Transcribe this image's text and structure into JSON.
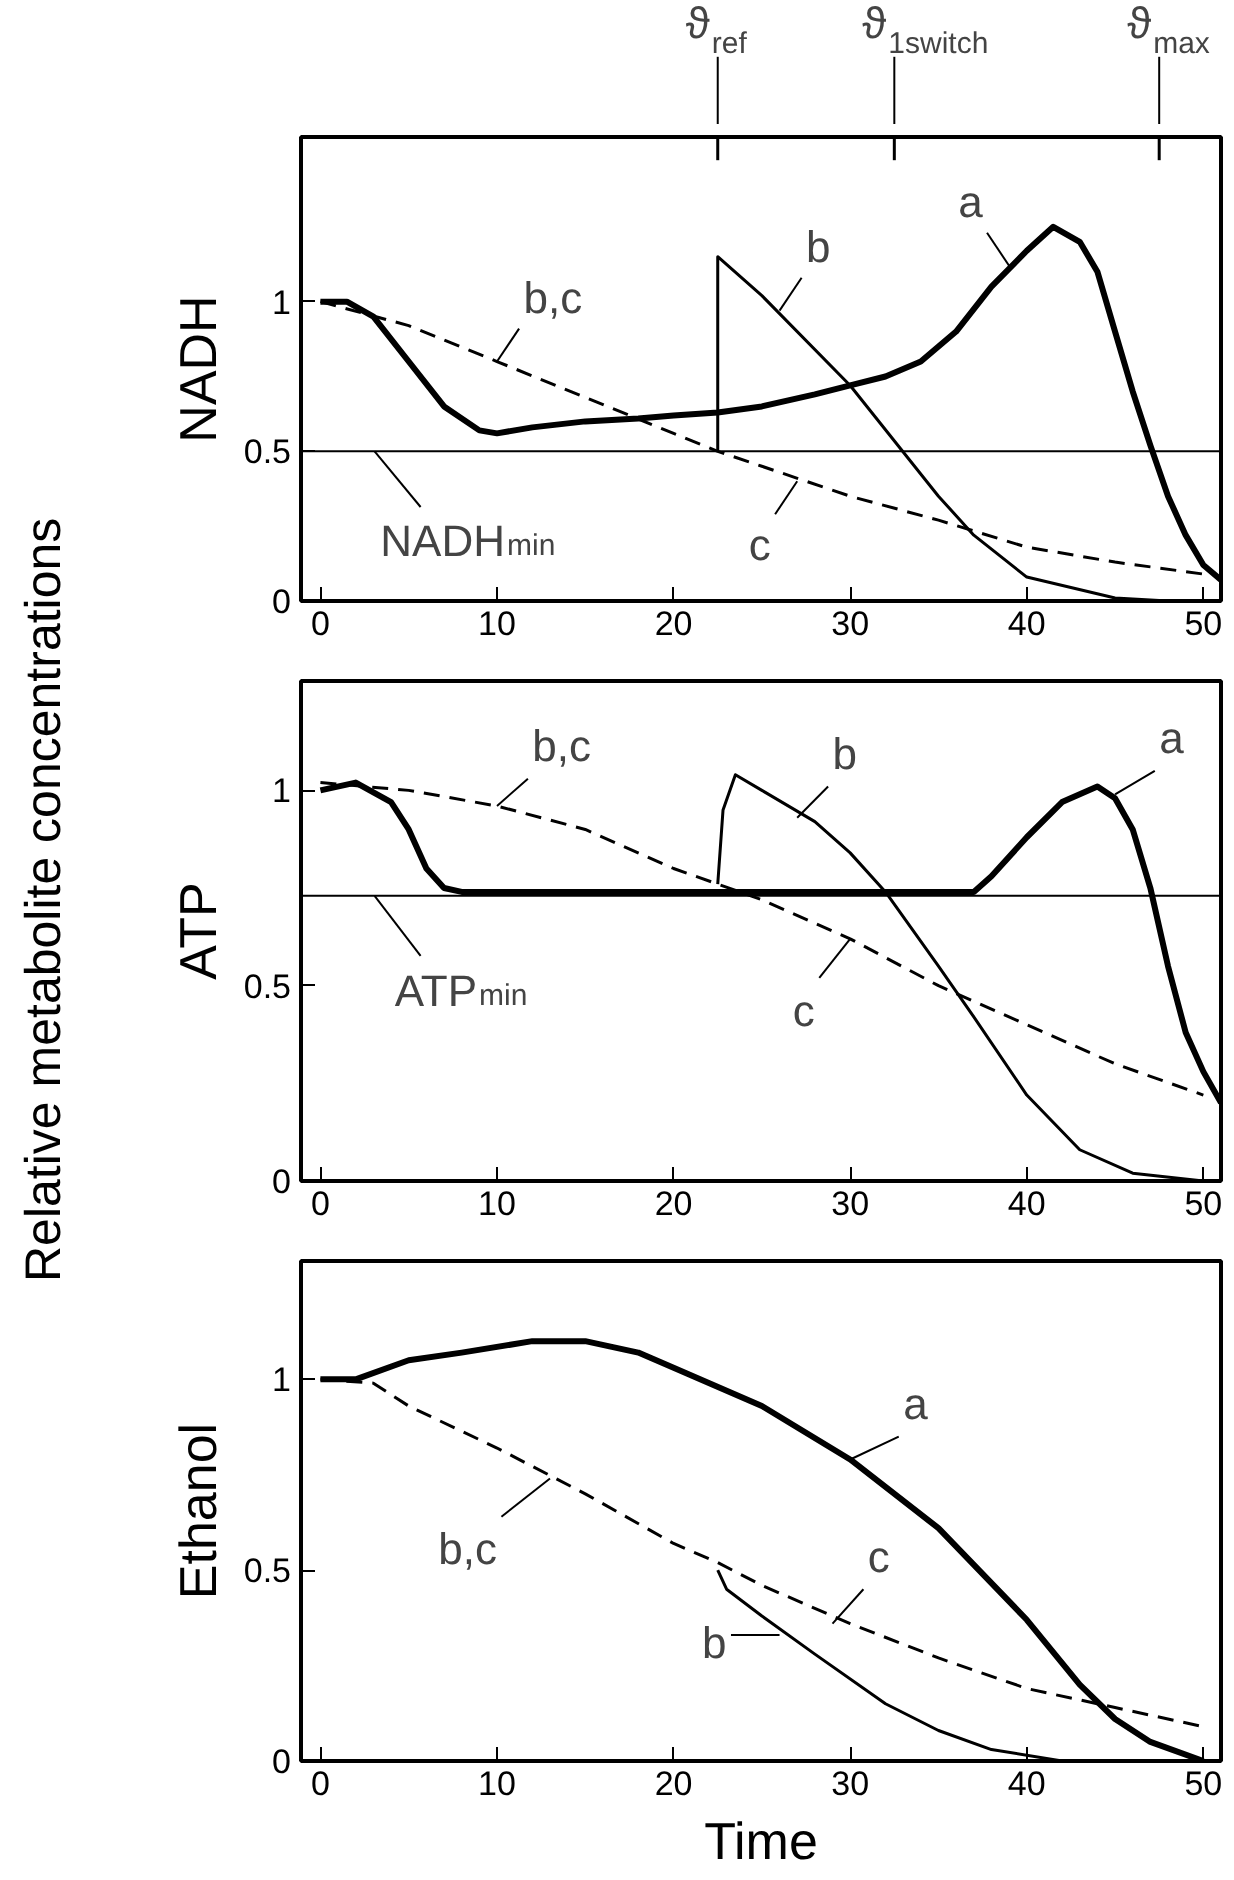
{
  "chart_data": [
    {
      "type": "line",
      "ylabel": "NADH",
      "xlim": [
        -1.1,
        51
      ],
      "xticks": [
        0,
        10,
        20,
        30,
        40,
        50
      ],
      "ylim": [
        0,
        1.55
      ],
      "yticks": [
        0,
        0.5,
        1
      ],
      "grid": false,
      "series": [
        {
          "color": "#000000",
          "line_style": "solid",
          "x": [
            0,
            1.5,
            3,
            5,
            7,
            9,
            10,
            12,
            15,
            18,
            20,
            22.5,
            25,
            28,
            30,
            32,
            34,
            36,
            38,
            40,
            41.5,
            43,
            44,
            45,
            46,
            47,
            48,
            49,
            50,
            51
          ],
          "values": [
            1.0,
            1.0,
            0.95,
            0.8,
            0.65,
            0.57,
            0.56,
            0.58,
            0.6,
            0.61,
            0.62,
            0.63,
            0.65,
            0.69,
            0.72,
            0.75,
            0.8,
            0.9,
            1.05,
            1.17,
            1.25,
            1.2,
            1.1,
            0.9,
            0.7,
            0.52,
            0.35,
            0.22,
            0.12,
            0.07
          ]
        },
        {
          "color": "#000000",
          "line_style": "solid",
          "x": [
            22.5,
            22.5,
            25,
            30,
            35,
            37,
            40,
            45,
            48
          ],
          "values": [
            0.5,
            1.15,
            1.02,
            0.72,
            0.35,
            0.22,
            0.08,
            0.01,
            0
          ]
        },
        {
          "color": "#000000",
          "line_style": "dashed",
          "x": [
            0,
            5,
            10,
            15,
            20,
            22.5,
            25,
            30,
            35,
            40,
            45,
            50
          ],
          "values": [
            1.0,
            0.92,
            0.8,
            0.68,
            0.56,
            0.5,
            0.45,
            0.35,
            0.27,
            0.18,
            0.13,
            0.09
          ]
        }
      ],
      "ref_lines": [
        {
          "axis": "y",
          "value": 0.5,
          "label": "NADH$_{min}$",
          "color": "#000000"
        },
        {
          "axis": "x",
          "value": 22.5,
          "label": "ϑ$_{ref}$",
          "color": "#000000"
        },
        {
          "axis": "x",
          "value": 32.5,
          "label": "ϑ$_{1switch}$",
          "color": "#000000"
        },
        {
          "axis": "x",
          "value": 47.5,
          "label": "ϑ$_{max}$",
          "color": "#000000"
        }
      ],
      "annotations": [
        {
          "text": "a",
          "x": 39,
          "y": 1.12
        },
        {
          "text": "b",
          "x": 26,
          "y": 0.97
        },
        {
          "text": "b,c",
          "x": 10,
          "y": 0.8
        },
        {
          "text": "c",
          "x": 27,
          "y": 0.4
        }
      ]
    },
    {
      "type": "line",
      "ylabel": "ATP",
      "xlim": [
        -1.1,
        51
      ],
      "xticks": [
        0,
        10,
        20,
        30,
        40,
        50
      ],
      "ylim": [
        0,
        1.28
      ],
      "yticks": [
        0,
        0.5,
        1
      ],
      "grid": false,
      "series": [
        {
          "color": "#000000",
          "line_style": "solid",
          "x": [
            0,
            2,
            4,
            5,
            6,
            7,
            8,
            37,
            38,
            40,
            42,
            44,
            45,
            46,
            47,
            48,
            49,
            50,
            51
          ],
          "values": [
            1.0,
            1.02,
            0.97,
            0.9,
            0.8,
            0.75,
            0.74,
            0.74,
            0.78,
            0.88,
            0.97,
            1.01,
            0.98,
            0.9,
            0.75,
            0.55,
            0.38,
            0.28,
            0.2
          ]
        },
        {
          "color": "#000000",
          "line_style": "solid",
          "x": [
            22.5,
            22.8,
            23.5,
            25,
            28,
            30,
            32,
            35,
            37,
            40,
            43,
            46,
            50
          ],
          "values": [
            0.76,
            0.95,
            1.04,
            1.0,
            0.92,
            0.84,
            0.74,
            0.55,
            0.42,
            0.22,
            0.08,
            0.02,
            0
          ]
        },
        {
          "color": "#000000",
          "line_style": "dashed",
          "x": [
            0,
            5,
            10,
            15,
            20,
            22.5,
            25,
            30,
            35,
            40,
            45,
            50
          ],
          "values": [
            1.02,
            1.0,
            0.96,
            0.9,
            0.8,
            0.76,
            0.72,
            0.62,
            0.5,
            0.4,
            0.3,
            0.22
          ]
        }
      ],
      "ref_lines": [
        {
          "axis": "y",
          "value": 0.73,
          "label": "ATP$_{min}$",
          "color": "#000000"
        }
      ],
      "annotations": [
        {
          "text": "b,c",
          "x": 10,
          "y": 0.96
        },
        {
          "text": "b",
          "x": 27,
          "y": 0.93
        },
        {
          "text": "a",
          "x": 45,
          "y": 0.99
        },
        {
          "text": "c",
          "x": 30,
          "y": 0.62
        },
        "Relative metabolite concentrations"
      ]
    },
    {
      "type": "line",
      "ylabel": "Ethanol",
      "xlabel": "Time",
      "xlim": [
        -1.1,
        51
      ],
      "xticks": [
        0,
        10,
        20,
        30,
        40,
        50
      ],
      "ylim": [
        0,
        1.31
      ],
      "yticks": [
        0,
        0.5,
        1
      ],
      "grid": false,
      "series": [
        {
          "color": "#000000",
          "line_style": "solid",
          "x": [
            0,
            2,
            5,
            8,
            12,
            15,
            18,
            20,
            25,
            30,
            35,
            40,
            43,
            45,
            47,
            50
          ],
          "values": [
            1.0,
            1.0,
            1.05,
            1.07,
            1.1,
            1.1,
            1.07,
            1.03,
            0.93,
            0.79,
            0.61,
            0.37,
            0.2,
            0.11,
            0.05,
            0.0
          ]
        },
        {
          "color": "#000000",
          "line_style": "solid",
          "x": [
            22.5,
            23,
            25,
            28,
            32,
            35,
            38,
            42,
            50
          ],
          "values": [
            0.5,
            0.45,
            0.38,
            0.28,
            0.15,
            0.08,
            0.03,
            0.0,
            0
          ]
        },
        {
          "color": "#000000",
          "line_style": "dashed",
          "x": [
            0,
            3,
            5,
            10,
            15,
            20,
            22.5,
            25,
            30,
            35,
            40,
            45,
            50
          ],
          "values": [
            1.0,
            0.99,
            0.93,
            0.82,
            0.7,
            0.57,
            0.52,
            0.46,
            0.36,
            0.27,
            0.19,
            0.14,
            0.09
          ]
        }
      ],
      "annotations": [
        {
          "text": "a",
          "x": 30,
          "y": 0.79
        },
        {
          "text": "b,c",
          "x": 13,
          "y": 0.74
        },
        {
          "text": "c",
          "x": 29,
          "y": 0.36
        },
        {
          "text": "b",
          "x": 26,
          "y": 0.33
        }
      ]
    }
  ]
}
